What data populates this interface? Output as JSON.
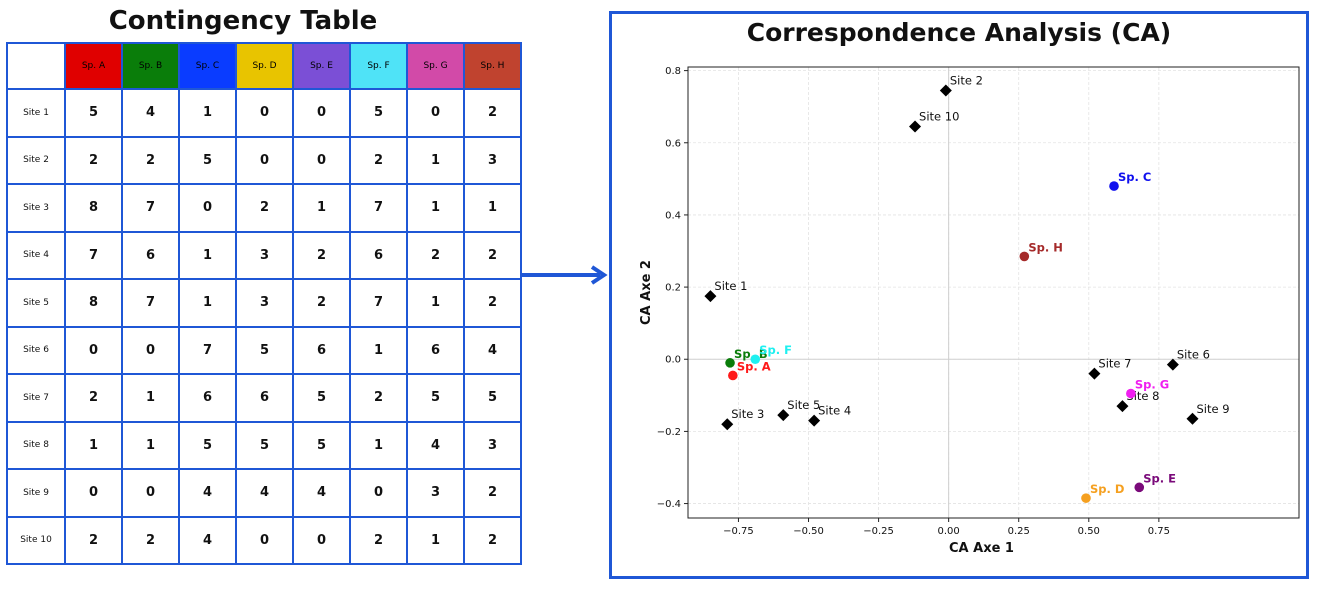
{
  "contingency": {
    "title": "Contingency Table",
    "species": [
      {
        "label": "Sp. A",
        "color": "#e00000"
      },
      {
        "label": "Sp. B",
        "color": "#0a7d0a"
      },
      {
        "label": "Sp. C",
        "color": "#0a3cff"
      },
      {
        "label": "Sp. D",
        "color": "#e8c400"
      },
      {
        "label": "Sp. E",
        "color": "#7b4fd6"
      },
      {
        "label": "Sp. F",
        "color": "#4fe3f7"
      },
      {
        "label": "Sp. G",
        "color": "#d24aa8"
      },
      {
        "label": "Sp. H",
        "color": "#c0432f"
      }
    ],
    "rows": [
      {
        "site": "Site 1",
        "values": [
          "5",
          "4",
          "1",
          "0",
          "0",
          "5",
          "0",
          "2"
        ]
      },
      {
        "site": "Site 2",
        "values": [
          "2",
          "2",
          "5",
          "0",
          "0",
          "2",
          "1",
          "3"
        ]
      },
      {
        "site": "Site 3",
        "values": [
          "8",
          "7",
          "0",
          "2",
          "1",
          "7",
          "1",
          "1"
        ]
      },
      {
        "site": "Site 4",
        "values": [
          "7",
          "6",
          "1",
          "3",
          "2",
          "6",
          "2",
          "2"
        ]
      },
      {
        "site": "Site 5",
        "values": [
          "8",
          "7",
          "1",
          "3",
          "2",
          "7",
          "1",
          "2"
        ]
      },
      {
        "site": "Site 6",
        "values": [
          "0",
          "0",
          "7",
          "5",
          "6",
          "1",
          "6",
          "4"
        ]
      },
      {
        "site": "Site 7",
        "values": [
          "2",
          "1",
          "6",
          "6",
          "5",
          "2",
          "5",
          "5"
        ]
      },
      {
        "site": "Site 8",
        "values": [
          "1",
          "1",
          "5",
          "5",
          "5",
          "1",
          "4",
          "3"
        ]
      },
      {
        "site": "Site 9",
        "values": [
          "0",
          "0",
          "4",
          "4",
          "4",
          "0",
          "3",
          "2"
        ]
      },
      {
        "site": "Site 10",
        "values": [
          "2",
          "2",
          "4",
          "0",
          "0",
          "2",
          "1",
          "2"
        ]
      }
    ]
  },
  "chart_data": {
    "type": "scatter",
    "title": "Correspondence Analysis (CA)",
    "xlabel": "CA Axe 1",
    "ylabel": "CA Axe 2",
    "xlim": [
      -0.93,
      1.25
    ],
    "ylim": [
      -0.44,
      0.81
    ],
    "xticks": [
      -0.75,
      -0.5,
      -0.25,
      0.0,
      0.25,
      0.5,
      0.75
    ],
    "xtick_labels": [
      "−0.75",
      "−0.50",
      "−0.25",
      "0.00",
      "0.25",
      "0.50",
      "0.75"
    ],
    "yticks": [
      -0.4,
      -0.2,
      0.0,
      0.2,
      0.4,
      0.6,
      0.8
    ],
    "ytick_labels": [
      "−0.4",
      "−0.2",
      "0.0",
      "0.2",
      "0.4",
      "0.6",
      "0.8"
    ],
    "grid": true,
    "sites": [
      {
        "label": "Site 1",
        "x": -0.85,
        "y": 0.175
      },
      {
        "label": "Site 2",
        "x": -0.01,
        "y": 0.745
      },
      {
        "label": "Site 3",
        "x": -0.79,
        "y": -0.18
      },
      {
        "label": "Site 4",
        "x": -0.48,
        "y": -0.17
      },
      {
        "label": "Site 5",
        "x": -0.59,
        "y": -0.155
      },
      {
        "label": "Site 6",
        "x": 0.8,
        "y": -0.015
      },
      {
        "label": "Site 7",
        "x": 0.52,
        "y": -0.04
      },
      {
        "label": "Site 8",
        "x": 0.62,
        "y": -0.13
      },
      {
        "label": "Site 9",
        "x": 0.87,
        "y": -0.165
      },
      {
        "label": "Site 10",
        "x": -0.12,
        "y": 0.645
      }
    ],
    "species": [
      {
        "label": "Sp. A",
        "x": -0.77,
        "y": -0.045,
        "color": "#ff1a1a"
      },
      {
        "label": "Sp. B",
        "x": -0.78,
        "y": -0.01,
        "color": "#0a7d0a"
      },
      {
        "label": "Sp. C",
        "x": 0.59,
        "y": 0.48,
        "color": "#1010ee"
      },
      {
        "label": "Sp. D",
        "x": 0.49,
        "y": -0.385,
        "color": "#f5a020"
      },
      {
        "label": "Sp. E",
        "x": 0.68,
        "y": -0.355,
        "color": "#7a0a7a"
      },
      {
        "label": "Sp. F",
        "x": -0.69,
        "y": 0.0,
        "color": "#1ef0f0"
      },
      {
        "label": "Sp. G",
        "x": 0.65,
        "y": -0.095,
        "color": "#f01ef0"
      },
      {
        "label": "Sp. H",
        "x": 0.27,
        "y": 0.285,
        "color": "#a52a2a"
      }
    ]
  }
}
